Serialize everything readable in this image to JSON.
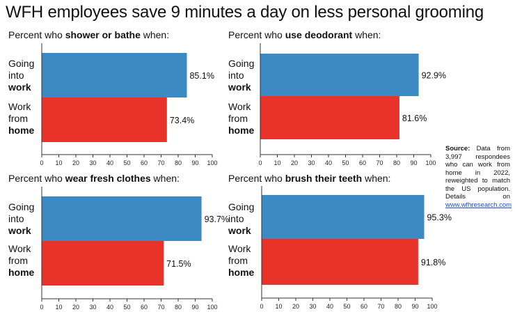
{
  "title": "WFH employees save 9 minutes a day on less personal grooming",
  "colors": {
    "going": "#3b8ac4",
    "home": "#e8322a",
    "axis": "#333333"
  },
  "charts": [
    {
      "title_prefix": "Percent who ",
      "title_bold": "shower or bathe",
      "title_suffix": " when:",
      "labels": [
        {
          "line1": "Going",
          "line2": "into",
          "bold": "work"
        },
        {
          "line1": "Work",
          "line2": "from",
          "bold": "home"
        }
      ]
    },
    {
      "title_prefix": "Percent who ",
      "title_bold": "use deodorant",
      "title_suffix": " when:",
      "labels": [
        {
          "line1": "Going",
          "line2": "into",
          "bold": "work"
        },
        {
          "line1": "Work",
          "line2": "from",
          "bold": "home"
        }
      ]
    },
    {
      "title_prefix": "Percent who ",
      "title_bold": "wear fresh clothes",
      "title_suffix": " when:",
      "labels": [
        {
          "line1": "Going",
          "line2": "into",
          "bold": "work"
        },
        {
          "line1": "Work",
          "line2": "from",
          "bold": "home"
        }
      ]
    },
    {
      "title_prefix": "Percent who ",
      "title_bold": "brush their teeth",
      "title_suffix": " when:",
      "labels": [
        {
          "line1": "Going",
          "line2": "into",
          "bold": "work"
        },
        {
          "line1": "Work",
          "line2": "from",
          "bold": "home"
        }
      ]
    }
  ],
  "chart_data": [
    {
      "type": "bar",
      "orientation": "horizontal",
      "title": "Percent who shower or bathe when:",
      "categories": [
        "Going into work",
        "Work from home"
      ],
      "values": [
        85.1,
        73.4
      ],
      "value_labels": [
        "85.1%",
        "73.4%"
      ],
      "xlim": [
        0,
        100
      ],
      "xticks": [
        0,
        10,
        20,
        30,
        40,
        50,
        60,
        70,
        80,
        90,
        100
      ],
      "grid": false
    },
    {
      "type": "bar",
      "orientation": "horizontal",
      "title": "Percent who use deodorant when:",
      "categories": [
        "Going into work",
        "Work from home"
      ],
      "values": [
        92.9,
        81.6
      ],
      "value_labels": [
        "92.9%",
        "81.6%"
      ],
      "xlim": [
        0,
        100
      ],
      "xticks": [
        0,
        10,
        20,
        30,
        40,
        50,
        60,
        70,
        80,
        90,
        100
      ],
      "grid": false
    },
    {
      "type": "bar",
      "orientation": "horizontal",
      "title": "Percent who wear fresh clothes when:",
      "categories": [
        "Going into work",
        "Work from home"
      ],
      "values": [
        93.7,
        71.5
      ],
      "value_labels": [
        "93.7%",
        "71.5%"
      ],
      "xlim": [
        0,
        100
      ],
      "xticks": [
        0,
        10,
        20,
        30,
        40,
        50,
        60,
        70,
        80,
        90,
        100
      ],
      "grid": false
    },
    {
      "type": "bar",
      "orientation": "horizontal",
      "title": "Percent who brush their teeth when:",
      "categories": [
        "Going into work",
        "Work from home"
      ],
      "values": [
        95.3,
        91.8
      ],
      "value_labels": [
        "95.3%",
        "91.8%"
      ],
      "xlim": [
        0,
        100
      ],
      "xticks": [
        0,
        10,
        20,
        30,
        40,
        50,
        60,
        70,
        80,
        90,
        100
      ],
      "grid": false
    }
  ],
  "source": {
    "label": "Source:",
    "text": " Data from 3,997 respondees who can work from home in 2022, reweighted to match the US population. Details on ",
    "link": "www.wfhresearch.com"
  }
}
